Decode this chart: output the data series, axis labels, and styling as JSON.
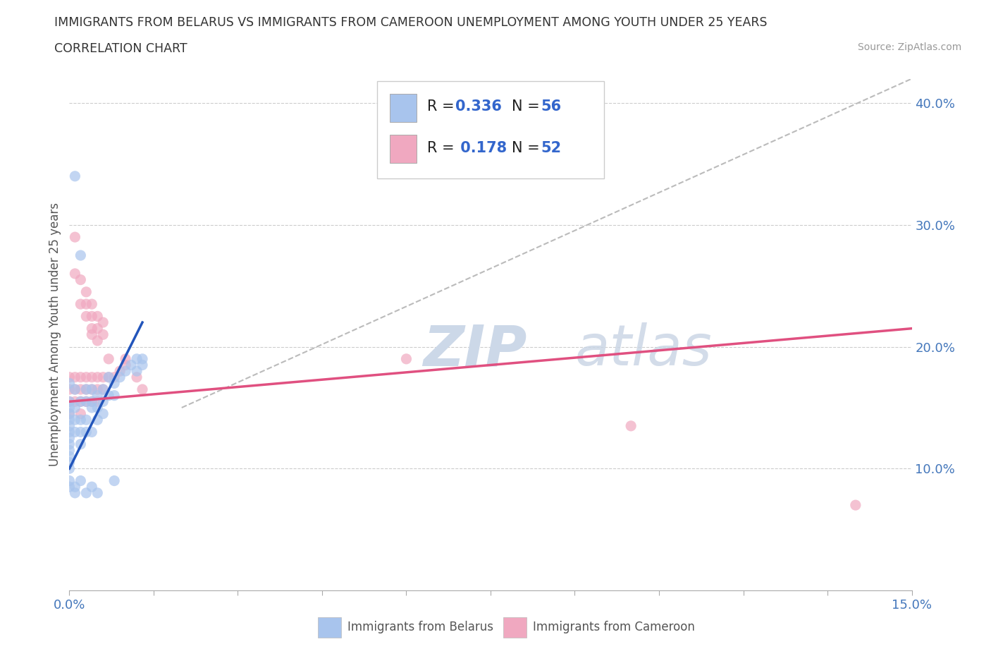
{
  "title_line1": "IMMIGRANTS FROM BELARUS VS IMMIGRANTS FROM CAMEROON UNEMPLOYMENT AMONG YOUTH UNDER 25 YEARS",
  "title_line2": "CORRELATION CHART",
  "source_text": "Source: ZipAtlas.com",
  "ylabel": "Unemployment Among Youth under 25 years",
  "xlim": [
    0.0,
    0.15
  ],
  "ylim": [
    0.0,
    0.42
  ],
  "x_ticks": [
    0.0,
    0.015,
    0.03,
    0.045,
    0.06,
    0.075,
    0.09,
    0.105,
    0.12,
    0.135,
    0.15
  ],
  "y_ticks": [
    0.0,
    0.1,
    0.2,
    0.3,
    0.4
  ],
  "color_belarus": "#a8c4ed",
  "color_cameroon": "#f0a8c0",
  "trendline_belarus_color": "#2255bb",
  "trendline_cameroon_color": "#e05080",
  "diagonal_color": "#bbbbbb",
  "watermark_color": "#ccd8e8",
  "belarus_scatter": [
    [
      0.0,
      0.17
    ],
    [
      0.0,
      0.155
    ],
    [
      0.0,
      0.15
    ],
    [
      0.0,
      0.145
    ],
    [
      0.0,
      0.14
    ],
    [
      0.0,
      0.135
    ],
    [
      0.0,
      0.13
    ],
    [
      0.0,
      0.125
    ],
    [
      0.0,
      0.12
    ],
    [
      0.0,
      0.115
    ],
    [
      0.0,
      0.11
    ],
    [
      0.0,
      0.105
    ],
    [
      0.0,
      0.1
    ],
    [
      0.0,
      0.09
    ],
    [
      0.0,
      0.085
    ],
    [
      0.001,
      0.165
    ],
    [
      0.001,
      0.15
    ],
    [
      0.001,
      0.14
    ],
    [
      0.001,
      0.13
    ],
    [
      0.002,
      0.155
    ],
    [
      0.002,
      0.14
    ],
    [
      0.002,
      0.13
    ],
    [
      0.002,
      0.12
    ],
    [
      0.003,
      0.165
    ],
    [
      0.003,
      0.155
    ],
    [
      0.003,
      0.14
    ],
    [
      0.003,
      0.13
    ],
    [
      0.004,
      0.165
    ],
    [
      0.004,
      0.155
    ],
    [
      0.004,
      0.15
    ],
    [
      0.004,
      0.13
    ],
    [
      0.005,
      0.16
    ],
    [
      0.005,
      0.15
    ],
    [
      0.005,
      0.14
    ],
    [
      0.006,
      0.165
    ],
    [
      0.006,
      0.155
    ],
    [
      0.006,
      0.145
    ],
    [
      0.007,
      0.175
    ],
    [
      0.007,
      0.16
    ],
    [
      0.008,
      0.17
    ],
    [
      0.008,
      0.16
    ],
    [
      0.009,
      0.175
    ],
    [
      0.01,
      0.18
    ],
    [
      0.011,
      0.185
    ],
    [
      0.012,
      0.19
    ],
    [
      0.012,
      0.18
    ],
    [
      0.013,
      0.19
    ],
    [
      0.013,
      0.185
    ],
    [
      0.001,
      0.085
    ],
    [
      0.001,
      0.08
    ],
    [
      0.002,
      0.09
    ],
    [
      0.003,
      0.08
    ],
    [
      0.004,
      0.085
    ],
    [
      0.005,
      0.08
    ],
    [
      0.008,
      0.09
    ],
    [
      0.001,
      0.34
    ],
    [
      0.002,
      0.275
    ]
  ],
  "cameroon_scatter": [
    [
      0.001,
      0.29
    ],
    [
      0.001,
      0.26
    ],
    [
      0.002,
      0.255
    ],
    [
      0.002,
      0.235
    ],
    [
      0.003,
      0.245
    ],
    [
      0.003,
      0.235
    ],
    [
      0.003,
      0.225
    ],
    [
      0.004,
      0.235
    ],
    [
      0.004,
      0.225
    ],
    [
      0.004,
      0.215
    ],
    [
      0.004,
      0.21
    ],
    [
      0.005,
      0.225
    ],
    [
      0.005,
      0.215
    ],
    [
      0.005,
      0.205
    ],
    [
      0.006,
      0.22
    ],
    [
      0.006,
      0.21
    ],
    [
      0.0,
      0.175
    ],
    [
      0.0,
      0.165
    ],
    [
      0.0,
      0.155
    ],
    [
      0.0,
      0.145
    ],
    [
      0.001,
      0.175
    ],
    [
      0.001,
      0.165
    ],
    [
      0.001,
      0.155
    ],
    [
      0.002,
      0.175
    ],
    [
      0.002,
      0.165
    ],
    [
      0.002,
      0.155
    ],
    [
      0.002,
      0.145
    ],
    [
      0.003,
      0.175
    ],
    [
      0.003,
      0.165
    ],
    [
      0.003,
      0.155
    ],
    [
      0.004,
      0.175
    ],
    [
      0.004,
      0.165
    ],
    [
      0.004,
      0.155
    ],
    [
      0.005,
      0.175
    ],
    [
      0.005,
      0.165
    ],
    [
      0.005,
      0.155
    ],
    [
      0.006,
      0.175
    ],
    [
      0.006,
      0.165
    ],
    [
      0.007,
      0.175
    ],
    [
      0.007,
      0.19
    ],
    [
      0.008,
      0.175
    ],
    [
      0.009,
      0.18
    ],
    [
      0.01,
      0.185
    ],
    [
      0.01,
      0.19
    ],
    [
      0.012,
      0.175
    ],
    [
      0.013,
      0.165
    ],
    [
      0.06,
      0.19
    ],
    [
      0.1,
      0.135
    ],
    [
      0.14,
      0.07
    ]
  ],
  "trendline_belarus": {
    "x": [
      0.0,
      0.013
    ],
    "y": [
      0.1,
      0.22
    ]
  },
  "trendline_cameroon": {
    "x": [
      0.0,
      0.15
    ],
    "y": [
      0.155,
      0.215
    ]
  },
  "diagonal_line": {
    "x": [
      0.02,
      0.15
    ],
    "y": [
      0.15,
      0.42
    ]
  }
}
